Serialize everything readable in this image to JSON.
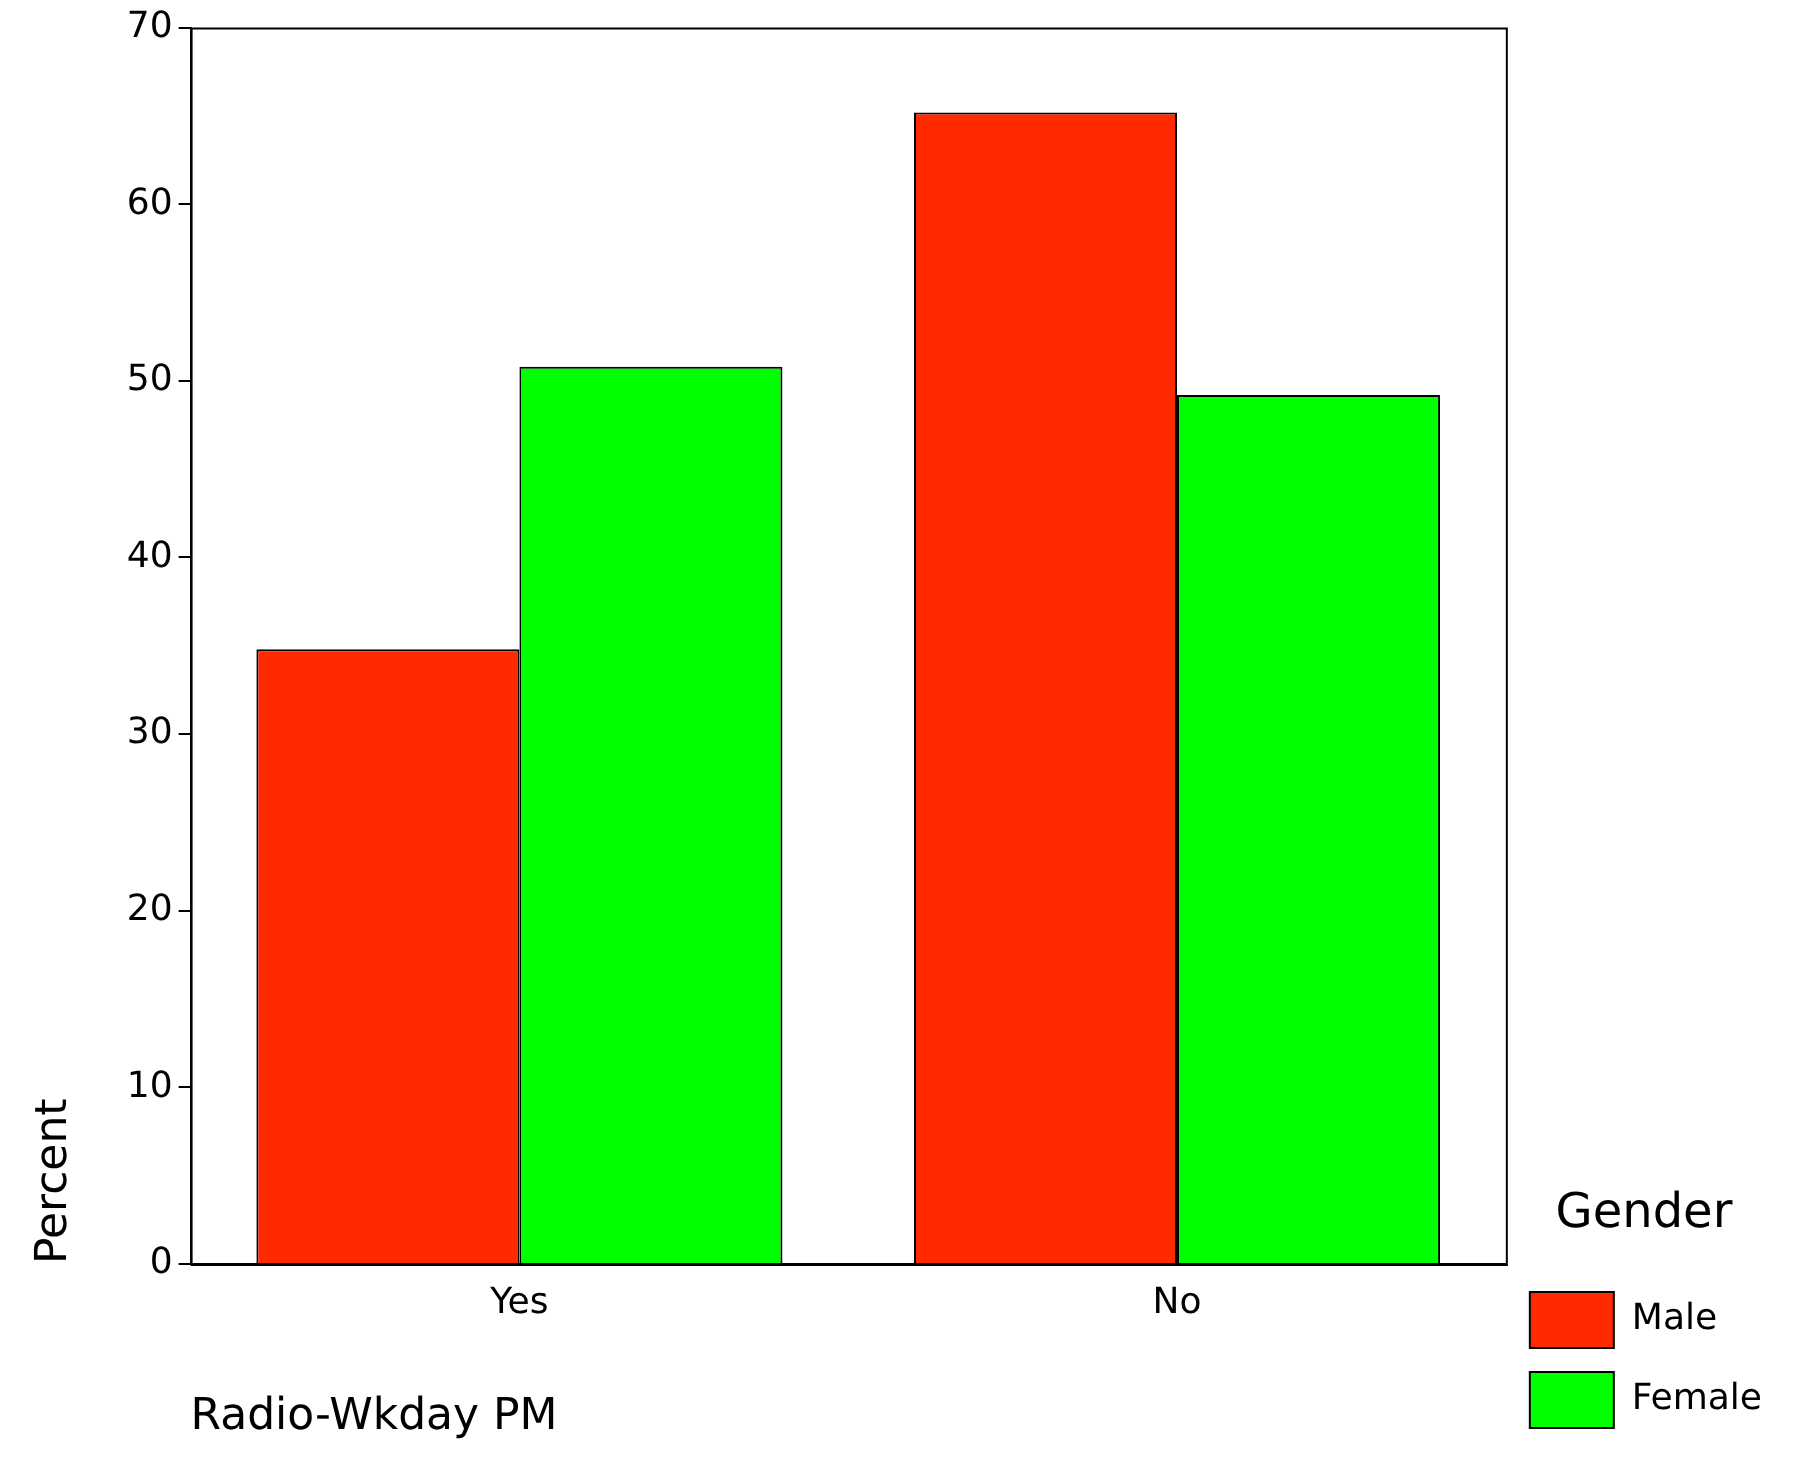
{
  "chart_data": {
    "type": "bar",
    "xlabel": "Radio-Wkday PM",
    "ylabel": "Percent",
    "legend_title": "Gender",
    "categories": [
      "Yes",
      "No"
    ],
    "series": [
      {
        "name": "Male",
        "color": "#ff2a00",
        "values": [
          34.8,
          65.2
        ]
      },
      {
        "name": "Female",
        "color": "#00ff00",
        "values": [
          50.8,
          49.2
        ]
      }
    ],
    "ylim": [
      0,
      70
    ],
    "yticks": [
      0,
      10,
      20,
      30,
      40,
      50,
      60,
      70
    ],
    "grid": false,
    "legend": "right"
  }
}
